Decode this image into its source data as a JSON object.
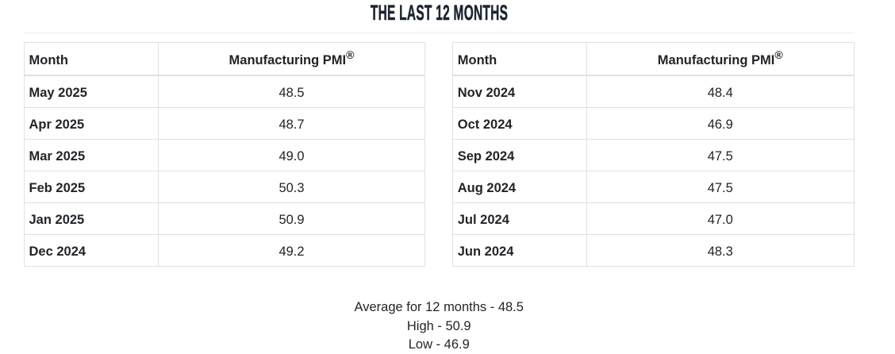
{
  "title": "THE LAST 12 MONTHS",
  "colors": {
    "title_text": "#1d2531",
    "body_text": "#212529",
    "table_border": "#dee2e6",
    "title_rule": "#e9ecef",
    "background": "#ffffff"
  },
  "tables": [
    {
      "id": "recent-months",
      "headers": {
        "month": "Month",
        "value": "Manufacturing PMI",
        "value_sup": "®"
      },
      "rows": [
        {
          "month": "May 2025",
          "value": "48.5"
        },
        {
          "month": "Apr 2025",
          "value": "48.7"
        },
        {
          "month": "Mar 2025",
          "value": "49.0"
        },
        {
          "month": "Feb 2025",
          "value": "50.3"
        },
        {
          "month": "Jan 2025",
          "value": "50.9"
        },
        {
          "month": "Dec 2024",
          "value": "49.2"
        }
      ]
    },
    {
      "id": "earlier-months",
      "headers": {
        "month": "Month",
        "value": "Manufacturing PMI",
        "value_sup": "®"
      },
      "rows": [
        {
          "month": "Nov 2024",
          "value": "48.4"
        },
        {
          "month": "Oct 2024",
          "value": "46.9"
        },
        {
          "month": "Sep 2024",
          "value": "47.5"
        },
        {
          "month": "Aug 2024",
          "value": "47.5"
        },
        {
          "month": "Jul 2024",
          "value": "47.0"
        },
        {
          "month": "Jun 2024",
          "value": "48.3"
        }
      ]
    }
  ],
  "summary": {
    "lines": [
      "Average for 12 months - 48.5",
      "High - 50.9",
      "Low - 46.9"
    ]
  },
  "chart_data": {
    "type": "table",
    "title": "THE LAST 12 MONTHS",
    "columns": [
      "Month",
      "Manufacturing PMI®"
    ],
    "categories": [
      "May 2025",
      "Apr 2025",
      "Mar 2025",
      "Feb 2025",
      "Jan 2025",
      "Dec 2024",
      "Nov 2024",
      "Oct 2024",
      "Sep 2024",
      "Aug 2024",
      "Jul 2024",
      "Jun 2024"
    ],
    "values": [
      48.5,
      48.7,
      49.0,
      50.3,
      50.9,
      49.2,
      48.4,
      46.9,
      47.5,
      47.5,
      47.0,
      48.3
    ],
    "average_12_months": 48.5,
    "high": 50.9,
    "low": 46.9
  }
}
